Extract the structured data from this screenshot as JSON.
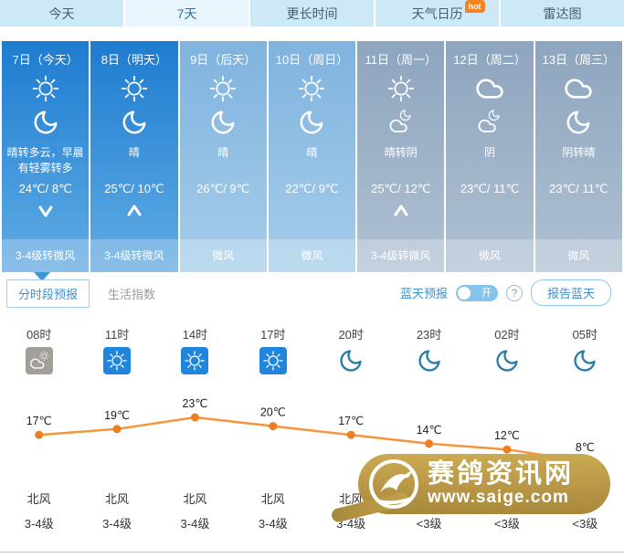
{
  "tabs": [
    {
      "label": "今天",
      "active": false,
      "badge": ""
    },
    {
      "label": "7天",
      "active": true,
      "badge": ""
    },
    {
      "label": "更长时间",
      "active": false,
      "badge": ""
    },
    {
      "label": "天气日历",
      "active": false,
      "badge": "hot"
    },
    {
      "label": "雷达图",
      "active": false,
      "badge": ""
    }
  ],
  "days": [
    {
      "date": "7日（今天）",
      "day_icon": "sun",
      "night_icon": "moon",
      "desc": "晴转多云，早晨有轻雾转多",
      "temp": "24℃/ 8℃",
      "arrow": "down",
      "wind": "3-4级转微风"
    },
    {
      "date": "8日（明天）",
      "day_icon": "sun",
      "night_icon": "moon",
      "desc": "晴",
      "temp": "25℃/ 10℃",
      "arrow": "up",
      "wind": "3-4级转微风"
    },
    {
      "date": "9日（后天）",
      "day_icon": "sun",
      "night_icon": "moon",
      "desc": "晴",
      "temp": "26℃/ 9℃",
      "arrow": "",
      "wind": "微风"
    },
    {
      "date": "10日（周日）",
      "day_icon": "sun",
      "night_icon": "moon",
      "desc": "晴",
      "temp": "22℃/ 9℃",
      "arrow": "",
      "wind": "微风"
    },
    {
      "date": "11日（周一）",
      "day_icon": "sun",
      "night_icon": "cloud-moon",
      "desc": "晴转阴",
      "temp": "25℃/ 12℃",
      "arrow": "up",
      "wind": "3-4级转微风"
    },
    {
      "date": "12日（周二）",
      "day_icon": "cloud",
      "night_icon": "cloud-moon",
      "desc": "阴",
      "temp": "23℃/ 11℃",
      "arrow": "",
      "wind": "微风"
    },
    {
      "date": "13日（周三）",
      "day_icon": "cloud",
      "night_icon": "moon",
      "desc": "阴转晴",
      "temp": "23℃/ 11℃",
      "arrow": "",
      "wind": "微风"
    }
  ],
  "subtabs": {
    "hourly": "分时段预报",
    "life": "生活指数"
  },
  "bluesky": {
    "label": "蓝天预报",
    "toggle": "开",
    "help": "?",
    "report": "报告蓝天"
  },
  "chart_data": {
    "type": "line",
    "x": [
      "08时",
      "11时",
      "14时",
      "17时",
      "20时",
      "23时",
      "02时",
      "05时"
    ],
    "values": [
      17,
      19,
      23,
      20,
      17,
      14,
      12,
      8
    ],
    "unit": "℃",
    "ylim": [
      8,
      23
    ],
    "line_color": "#f5953c",
    "point_color": "#ee7e23",
    "icons": [
      "sun-cloud",
      "sun",
      "sun",
      "sun",
      "moon",
      "moon",
      "moon",
      "moon"
    ],
    "wind_dir": [
      "北风",
      "北风",
      "北风",
      "北风",
      "北风",
      "",
      "",
      ""
    ],
    "wind_level": [
      "3-4级",
      "3-4级",
      "3-4级",
      "3-4级",
      "3-4级",
      "<3级",
      "<3级",
      "<3级"
    ],
    "grid": false,
    "legend": false
  },
  "watermark": {
    "name": "赛鸽资讯网",
    "url": "www.saige.com"
  },
  "colors": {
    "accent_blue": "#3e90d2",
    "tab_bg": "#cde9f8",
    "today_blue": "#1e7cd0",
    "gray_blue": "#8da5be",
    "hot_orange": "#f8821e",
    "gold": "#b8973f"
  }
}
